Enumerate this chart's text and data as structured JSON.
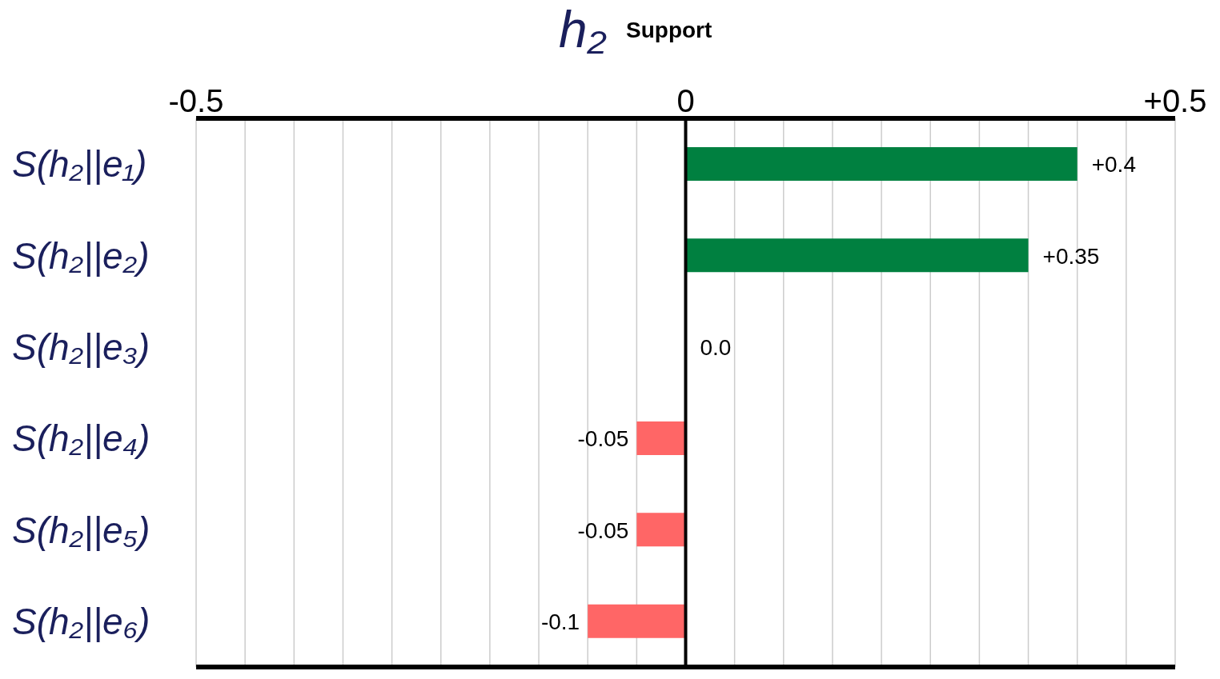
{
  "chart_data": {
    "type": "bar",
    "orientation": "horizontal",
    "title": "h₂",
    "subtitle": "Support",
    "categories": [
      "S(h₂||e₁)",
      "S(h₂||e₂)",
      "S(h₂||e₃)",
      "S(h₂||e₄)",
      "S(h₂||e₅)",
      "S(h₂||e₆)"
    ],
    "values": [
      0.4,
      0.35,
      0,
      -0.05,
      -0.05,
      -0.1
    ],
    "colors": [
      "#008040",
      "#008040",
      "#008040",
      "#ff6666",
      "#ff6666",
      "#ff6666"
    ],
    "value_labels": [
      "+0.4",
      "+0.35",
      "0.0",
      "-0.05",
      "-0.05",
      "-0.1"
    ],
    "xlim": [
      -0.5,
      0.5
    ],
    "xticks": [
      {
        "value": -0.5,
        "label": "-0.5"
      },
      {
        "value": -0.45,
        "label": null
      },
      {
        "value": -0.4,
        "label": null
      },
      {
        "value": -0.35,
        "label": null
      },
      {
        "value": -0.3,
        "label": null
      },
      {
        "value": -0.25,
        "label": null
      },
      {
        "value": -0.2,
        "label": null
      },
      {
        "value": -0.15,
        "label": null
      },
      {
        "value": -0.1,
        "label": null
      },
      {
        "value": -0.05,
        "label": null
      },
      0,
      {
        "value": 0.05,
        "label": null
      },
      {
        "value": 0.1,
        "label": null
      },
      {
        "value": 0.15,
        "label": null
      },
      {
        "value": 0.2,
        "label": null
      },
      {
        "value": 0.25,
        "label": null
      },
      {
        "value": 0.3,
        "label": null
      },
      {
        "value": 0.35,
        "label": null
      },
      {
        "value": 0.4,
        "label": null
      },
      {
        "value": 0.45,
        "label": null
      },
      {
        "value": 0.5,
        "label": "+0.5"
      }
    ],
    "ref_lines": [
      {
        "axis": "x",
        "value": 0,
        "color": "#000000"
      }
    ],
    "grid": "x"
  }
}
